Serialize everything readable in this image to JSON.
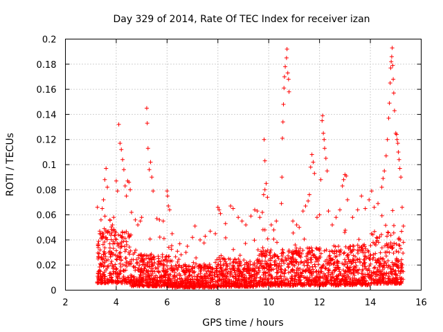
{
  "chart_data": {
    "type": "scatter",
    "title": "Day 329 of 2014, Rate Of TEC Index for receiver izan",
    "xlabel": "GPS time / hours",
    "ylabel": "ROTI / TECUs",
    "xlim": [
      2,
      16
    ],
    "ylim": [
      0,
      0.2
    ],
    "xticks": [
      2,
      4,
      6,
      8,
      10,
      12,
      14,
      16
    ],
    "xtick_labels": [
      "2",
      "4",
      "6",
      "8",
      "10",
      "12",
      "14",
      "16"
    ],
    "yticks": [
      0,
      0.02,
      0.04,
      0.06,
      0.08,
      0.1,
      0.12,
      0.14,
      0.16,
      0.18,
      0.2
    ],
    "ytick_labels": [
      "0",
      "0.02",
      "0.04",
      "0.06",
      "0.08",
      "0.1",
      "0.12",
      "0.14",
      "0.16",
      "0.18",
      "0.2"
    ],
    "grid": true,
    "marker": "+",
    "marker_color": "#ff0000",
    "x_data_range": [
      3.25,
      15.3
    ],
    "series": [
      {
        "name": "ROTI",
        "points": [
          [
            3.35,
            0.047
          ],
          [
            3.4,
            0.056
          ],
          [
            3.45,
            0.065
          ],
          [
            3.5,
            0.072
          ],
          [
            3.55,
            0.088
          ],
          [
            3.6,
            0.097
          ],
          [
            3.65,
            0.082
          ],
          [
            3.75,
            0.056
          ],
          [
            3.85,
            0.052
          ],
          [
            3.9,
            0.058
          ],
          [
            3.95,
            0.047
          ],
          [
            4.0,
            0.087
          ],
          [
            4.05,
            0.079
          ],
          [
            4.1,
            0.132
          ],
          [
            4.15,
            0.117
          ],
          [
            4.2,
            0.112
          ],
          [
            4.25,
            0.104
          ],
          [
            4.3,
            0.096
          ],
          [
            4.35,
            0.083
          ],
          [
            4.4,
            0.075
          ],
          [
            4.45,
            0.087
          ],
          [
            4.5,
            0.086
          ],
          [
            4.55,
            0.08
          ],
          [
            4.6,
            0.062
          ],
          [
            4.75,
            0.056
          ],
          [
            4.85,
            0.052
          ],
          [
            4.95,
            0.055
          ],
          [
            5.0,
            0.058
          ],
          [
            5.2,
            0.145
          ],
          [
            5.22,
            0.133
          ],
          [
            5.25,
            0.113
          ],
          [
            5.3,
            0.096
          ],
          [
            5.35,
            0.102
          ],
          [
            5.4,
            0.09
          ],
          [
            5.45,
            0.079
          ],
          [
            5.6,
            0.057
          ],
          [
            5.7,
            0.056
          ],
          [
            5.85,
            0.055
          ],
          [
            6.0,
            0.079
          ],
          [
            6.02,
            0.075
          ],
          [
            6.05,
            0.067
          ],
          [
            6.1,
            0.064
          ],
          [
            6.2,
            0.045
          ],
          [
            6.5,
            0.037
          ],
          [
            6.8,
            0.035
          ],
          [
            7.0,
            0.042
          ],
          [
            7.1,
            0.051
          ],
          [
            7.3,
            0.04
          ],
          [
            7.5,
            0.043
          ],
          [
            7.7,
            0.047
          ],
          [
            7.9,
            0.045
          ],
          [
            8.0,
            0.066
          ],
          [
            8.05,
            0.064
          ],
          [
            8.1,
            0.061
          ],
          [
            8.3,
            0.053
          ],
          [
            8.5,
            0.067
          ],
          [
            8.6,
            0.065
          ],
          [
            8.8,
            0.058
          ],
          [
            8.95,
            0.055
          ],
          [
            9.1,
            0.052
          ],
          [
            9.3,
            0.059
          ],
          [
            9.45,
            0.064
          ],
          [
            9.55,
            0.063
          ],
          [
            9.65,
            0.058
          ],
          [
            9.75,
            0.062
          ],
          [
            9.8,
            0.076
          ],
          [
            9.85,
            0.08
          ],
          [
            9.9,
            0.085
          ],
          [
            9.95,
            0.074
          ],
          [
            9.85,
            0.103
          ],
          [
            9.82,
            0.12
          ],
          [
            10.1,
            0.052
          ],
          [
            10.2,
            0.048
          ],
          [
            10.3,
            0.055
          ],
          [
            10.5,
            0.069
          ],
          [
            10.52,
            0.09
          ],
          [
            10.54,
            0.121
          ],
          [
            10.56,
            0.134
          ],
          [
            10.58,
            0.148
          ],
          [
            10.6,
            0.161
          ],
          [
            10.62,
            0.17
          ],
          [
            10.65,
            0.178
          ],
          [
            10.7,
            0.185
          ],
          [
            10.72,
            0.192
          ],
          [
            10.75,
            0.173
          ],
          [
            10.78,
            0.168
          ],
          [
            10.8,
            0.158
          ],
          [
            10.95,
            0.055
          ],
          [
            11.1,
            0.052
          ],
          [
            11.2,
            0.05
          ],
          [
            11.35,
            0.063
          ],
          [
            11.45,
            0.067
          ],
          [
            11.55,
            0.071
          ],
          [
            11.6,
            0.076
          ],
          [
            11.65,
            0.098
          ],
          [
            11.7,
            0.108
          ],
          [
            11.75,
            0.102
          ],
          [
            11.8,
            0.093
          ],
          [
            11.9,
            0.058
          ],
          [
            12.0,
            0.06
          ],
          [
            12.05,
            0.088
          ],
          [
            12.1,
            0.135
          ],
          [
            12.12,
            0.139
          ],
          [
            12.15,
            0.125
          ],
          [
            12.18,
            0.12
          ],
          [
            12.2,
            0.113
          ],
          [
            12.25,
            0.105
          ],
          [
            12.3,
            0.095
          ],
          [
            12.35,
            0.063
          ],
          [
            12.5,
            0.052
          ],
          [
            12.65,
            0.058
          ],
          [
            12.8,
            0.064
          ],
          [
            12.9,
            0.083
          ],
          [
            12.95,
            0.088
          ],
          [
            13.0,
            0.092
          ],
          [
            13.05,
            0.091
          ],
          [
            13.1,
            0.072
          ],
          [
            13.3,
            0.058
          ],
          [
            13.5,
            0.064
          ],
          [
            13.65,
            0.075
          ],
          [
            13.8,
            0.065
          ],
          [
            13.95,
            0.072
          ],
          [
            14.05,
            0.079
          ],
          [
            14.15,
            0.066
          ],
          [
            14.3,
            0.069
          ],
          [
            14.45,
            0.082
          ],
          [
            14.5,
            0.089
          ],
          [
            14.55,
            0.095
          ],
          [
            14.62,
            0.107
          ],
          [
            14.67,
            0.12
          ],
          [
            14.72,
            0.137
          ],
          [
            14.75,
            0.149
          ],
          [
            14.78,
            0.165
          ],
          [
            14.8,
            0.177
          ],
          [
            14.82,
            0.182
          ],
          [
            14.84,
            0.186
          ],
          [
            14.86,
            0.193
          ],
          [
            14.88,
            0.179
          ],
          [
            14.9,
            0.168
          ],
          [
            14.92,
            0.157
          ],
          [
            14.95,
            0.143
          ],
          [
            15.0,
            0.125
          ],
          [
            15.03,
            0.124
          ],
          [
            15.05,
            0.12
          ],
          [
            15.08,
            0.117
          ],
          [
            15.1,
            0.11
          ],
          [
            15.13,
            0.104
          ],
          [
            15.16,
            0.097
          ],
          [
            15.2,
            0.09
          ],
          [
            15.25,
            0.066
          ],
          [
            15.3,
            0.051
          ]
        ]
      }
    ]
  }
}
